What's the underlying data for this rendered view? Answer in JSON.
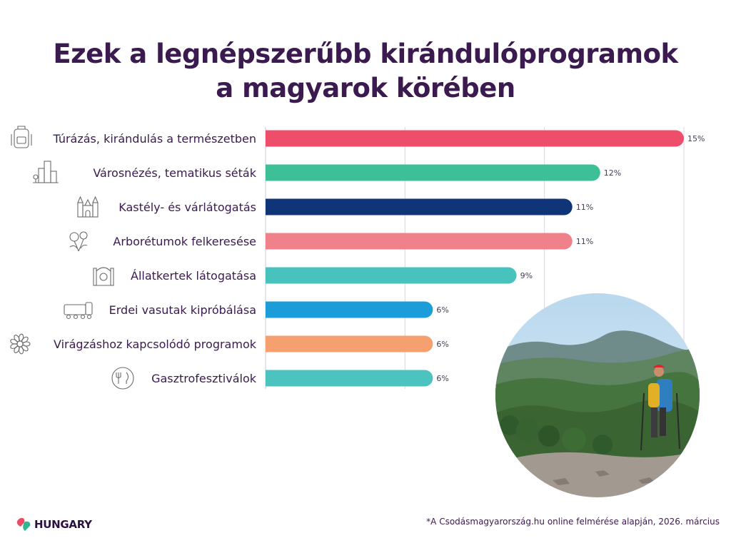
{
  "title": {
    "line1": "Ezek a legnépszerűbb kirándulóprogramok",
    "line2": "a magyarok körében"
  },
  "chart_data": {
    "type": "bar",
    "orientation": "horizontal",
    "categories": [
      "Túrázás, kirándulás a természetben",
      "Városnézés, tematikus séták",
      "Kastély- és várlátogatás",
      "Arborétumok felkeresése",
      "Állatkertek látogatása",
      "Erdei vasutak kipróbálása",
      "Virágzáshoz kapcsolódó programok",
      "Gasztrofesztiválok"
    ],
    "values": [
      15,
      12,
      11,
      11,
      9,
      6,
      6,
      6
    ],
    "value_labels": [
      "15%",
      "12%",
      "11%",
      "11%",
      "9%",
      "6%",
      "6%",
      "6%"
    ],
    "unit": "%",
    "colors": [
      "#ee4e6a",
      "#3dbf98",
      "#0f3578",
      "#f0808a",
      "#47c2bd",
      "#1a9dd9",
      "#f5a06e",
      "#4cc3bf"
    ],
    "icons": [
      "backpack-icon",
      "city-icon",
      "castle-icon",
      "flower-bush-icon",
      "zoo-gate-icon",
      "train-icon",
      "daisy-icon",
      "plate-cutlery-icon"
    ],
    "xlim": [
      0,
      15
    ],
    "grid": true
  },
  "photo": {
    "icon": "hiker-photo-icon"
  },
  "logo": {
    "text": "HUNGARY",
    "icon": "heart-logo-icon"
  },
  "footnote": "*A Csodásmagyarország.hu online felmérése alapján, 2026. március"
}
